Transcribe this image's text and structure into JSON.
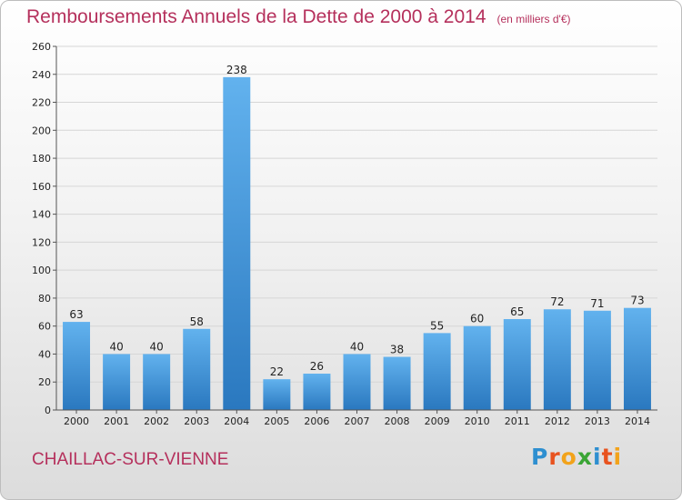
{
  "header": {
    "title": "Remboursements Annuels de la Dette de 2000 à 2014",
    "subtitle": "(en milliers d'€)"
  },
  "footer": {
    "town": "CHAILLAC-SUR-VIENNE",
    "logo_letters": [
      "P",
      "r",
      "o",
      "x",
      "i",
      "t",
      "i"
    ],
    "logo_colors": [
      "#2e8fd0",
      "#e8531f",
      "#f2a31b",
      "#3aa535",
      "#2e8fd0",
      "#e8531f",
      "#f2a31b"
    ]
  },
  "chart_data": {
    "type": "bar",
    "title": "Remboursements Annuels de la Dette de 2000 à 2014",
    "subtitle": "(en milliers d'€)",
    "categories": [
      "2000",
      "2001",
      "2002",
      "2003",
      "2004",
      "2005",
      "2006",
      "2007",
      "2008",
      "2009",
      "2010",
      "2011",
      "2012",
      "2013",
      "2014"
    ],
    "values": [
      63,
      40,
      40,
      58,
      238,
      22,
      26,
      40,
      38,
      55,
      60,
      65,
      72,
      71,
      73
    ],
    "ylim": [
      0,
      260
    ],
    "yticks": [
      0,
      20,
      40,
      60,
      80,
      100,
      120,
      140,
      160,
      180,
      200,
      220,
      240,
      260
    ],
    "grid": true,
    "bar_color": "#3d95d8",
    "bar_color_light": "#62b2ee",
    "bar_color_dark": "#2a78bf"
  }
}
